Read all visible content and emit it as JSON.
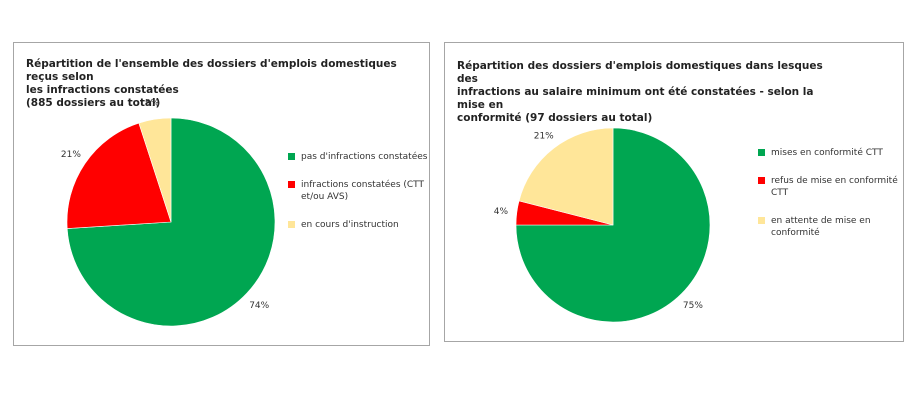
{
  "chart_data": [
    {
      "type": "pie",
      "title_lines": [
        "Répartition de l'ensemble des dossiers d'emplois domestiques reçus selon",
        "les infractions  constatées",
        "(885 dossiers au total)"
      ],
      "categories": [
        "pas d'infractions constatées",
        "infractions constatées (CTT et/ou AVS)",
        "en cours d'instruction"
      ],
      "values": [
        74,
        21,
        5
      ],
      "value_labels": [
        "74%",
        "21%",
        "5%"
      ],
      "colors": [
        "#00a651",
        "#ff0000",
        "#ffe699"
      ],
      "legend_position": "right"
    },
    {
      "type": "pie",
      "title_lines": [
        "Répartition des dossiers d'emplois domestiques  dans lesques des",
        "infractions au salaire minimum ont été constatées - selon la mise en",
        "conformité (97 dossiers au total)"
      ],
      "categories": [
        "mises en conformité CTT",
        "refus de mise en conformité CTT",
        "en attente de mise en conformité"
      ],
      "values": [
        75,
        4,
        21
      ],
      "value_labels": [
        "75%",
        "4%",
        "21%"
      ],
      "colors": [
        "#00a651",
        "#ff0000",
        "#ffe699"
      ],
      "legend_position": "right"
    }
  ]
}
